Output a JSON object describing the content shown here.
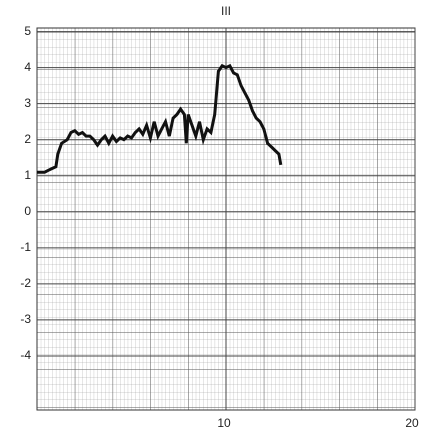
{
  "chart_data": {
    "type": "line",
    "title": "III",
    "x": [
      0,
      0.4,
      0.6,
      0.8,
      1.0,
      1.1,
      1.3,
      1.6,
      1.8,
      2.0,
      2.2,
      2.4,
      2.6,
      2.8,
      3.0,
      3.2,
      3.4,
      3.6,
      3.8,
      4.0,
      4.2,
      4.4,
      4.6,
      4.8,
      5.0,
      5.2,
      5.4,
      5.6,
      5.8,
      6.0,
      6.2,
      6.4,
      6.6,
      6.8,
      7.0,
      7.2,
      7.4,
      7.6,
      7.8,
      7.9,
      8.0,
      8.2,
      8.4,
      8.6,
      8.8,
      9.0,
      9.2,
      9.4,
      9.6,
      9.8,
      10.0,
      10.2,
      10.4,
      10.6,
      10.8,
      11.0,
      11.2,
      11.4,
      11.6,
      11.8,
      12.0,
      12.2,
      12.4,
      12.6,
      12.8,
      12.9
    ],
    "values": [
      1.1,
      1.1,
      1.15,
      1.2,
      1.25,
      1.6,
      1.9,
      2.0,
      2.2,
      2.25,
      2.15,
      2.2,
      2.1,
      2.1,
      2.0,
      1.85,
      2.0,
      2.1,
      1.9,
      2.1,
      1.95,
      2.05,
      2.0,
      2.1,
      2.05,
      2.2,
      2.3,
      2.15,
      2.4,
      2.05,
      2.5,
      2.1,
      2.3,
      2.5,
      2.1,
      2.6,
      2.7,
      2.85,
      2.7,
      1.9,
      2.7,
      2.4,
      2.1,
      2.5,
      2.0,
      2.3,
      2.2,
      2.7,
      3.9,
      4.05,
      4.0,
      4.05,
      3.85,
      3.8,
      3.5,
      3.3,
      3.1,
      2.8,
      2.6,
      2.5,
      2.3,
      1.9,
      1.8,
      1.7,
      1.6,
      1.3
    ],
    "color": "#111111",
    "xlim": [
      0,
      20
    ],
    "xticks": [
      10,
      20
    ],
    "ylim": [
      -5.5,
      5.1
    ],
    "yticks": [
      5,
      4,
      3,
      2,
      1,
      0,
      -1,
      -2,
      -3,
      -4
    ],
    "grid": true
  }
}
